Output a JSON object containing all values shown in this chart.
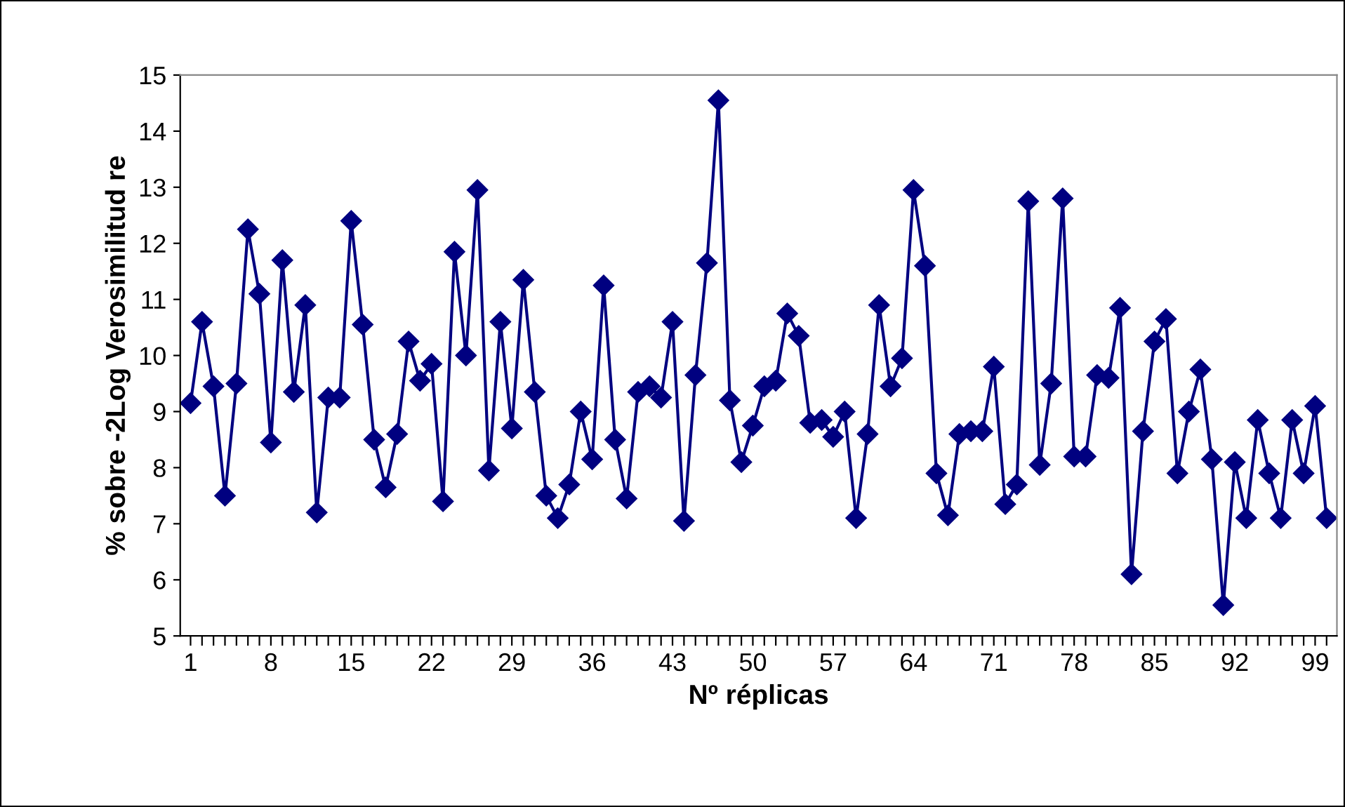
{
  "chart_data": {
    "type": "line",
    "xlabel": "Nº réplicas",
    "ylabel": "% sobre -2Log Verosimilitud re",
    "categories": [
      "1",
      null,
      null,
      null,
      null,
      null,
      null,
      "8",
      null,
      null,
      null,
      null,
      null,
      null,
      "15",
      null,
      null,
      null,
      null,
      null,
      null,
      "22",
      null,
      null,
      null,
      null,
      null,
      null,
      "29",
      null,
      null,
      null,
      null,
      null,
      null,
      "36",
      null,
      null,
      null,
      null,
      null,
      null,
      "43",
      null,
      null,
      null,
      null,
      null,
      null,
      "50",
      null,
      null,
      null,
      null,
      null,
      null,
      "57",
      null,
      null,
      null,
      null,
      null,
      null,
      "64",
      null,
      null,
      null,
      null,
      null,
      null,
      "71",
      null,
      null,
      null,
      null,
      null,
      null,
      "78",
      null,
      null,
      null,
      null,
      null,
      null,
      "85",
      null,
      null,
      null,
      null,
      null,
      null,
      "92",
      null,
      null,
      null,
      null,
      null,
      null,
      "99",
      null
    ],
    "series": [
      {
        "color": "#000080",
        "values": [
          9.15,
          10.6,
          9.45,
          7.5,
          9.5,
          12.25,
          11.1,
          8.45,
          11.7,
          9.35,
          10.9,
          7.2,
          9.25,
          9.25,
          12.4,
          10.55,
          8.5,
          7.65,
          8.6,
          10.25,
          9.55,
          9.85,
          7.4,
          11.85,
          10.0,
          12.95,
          7.95,
          10.6,
          8.7,
          11.35,
          9.35,
          7.5,
          7.1,
          7.7,
          9.0,
          8.15,
          11.25,
          8.5,
          7.45,
          9.35,
          9.45,
          9.25,
          10.6,
          7.05,
          9.65,
          11.65,
          14.55,
          9.2,
          8.1,
          8.75,
          9.45,
          9.55,
          10.75,
          10.35,
          8.8,
          8.85,
          8.55,
          9.0,
          7.1,
          8.6,
          10.9,
          9.45,
          9.95,
          12.95,
          11.6,
          7.9,
          7.15,
          8.6,
          8.65,
          8.65,
          9.8,
          7.35,
          7.7,
          12.75,
          8.05,
          9.5,
          12.8,
          8.2,
          8.2,
          9.65,
          9.6,
          10.85,
          6.1,
          8.65,
          10.25,
          10.65,
          7.9,
          9.0,
          9.75,
          8.15,
          5.55,
          8.1,
          7.1,
          8.85,
          7.9,
          7.1,
          8.85,
          7.9,
          9.1,
          7.1
        ]
      }
    ],
    "ylim": [
      5,
      15
    ],
    "yticks": [
      5,
      6,
      7,
      8,
      9,
      10,
      11,
      12,
      13,
      14,
      15
    ],
    "grid": false,
    "legend": false,
    "marker": "diamond",
    "line_style": "solid"
  }
}
